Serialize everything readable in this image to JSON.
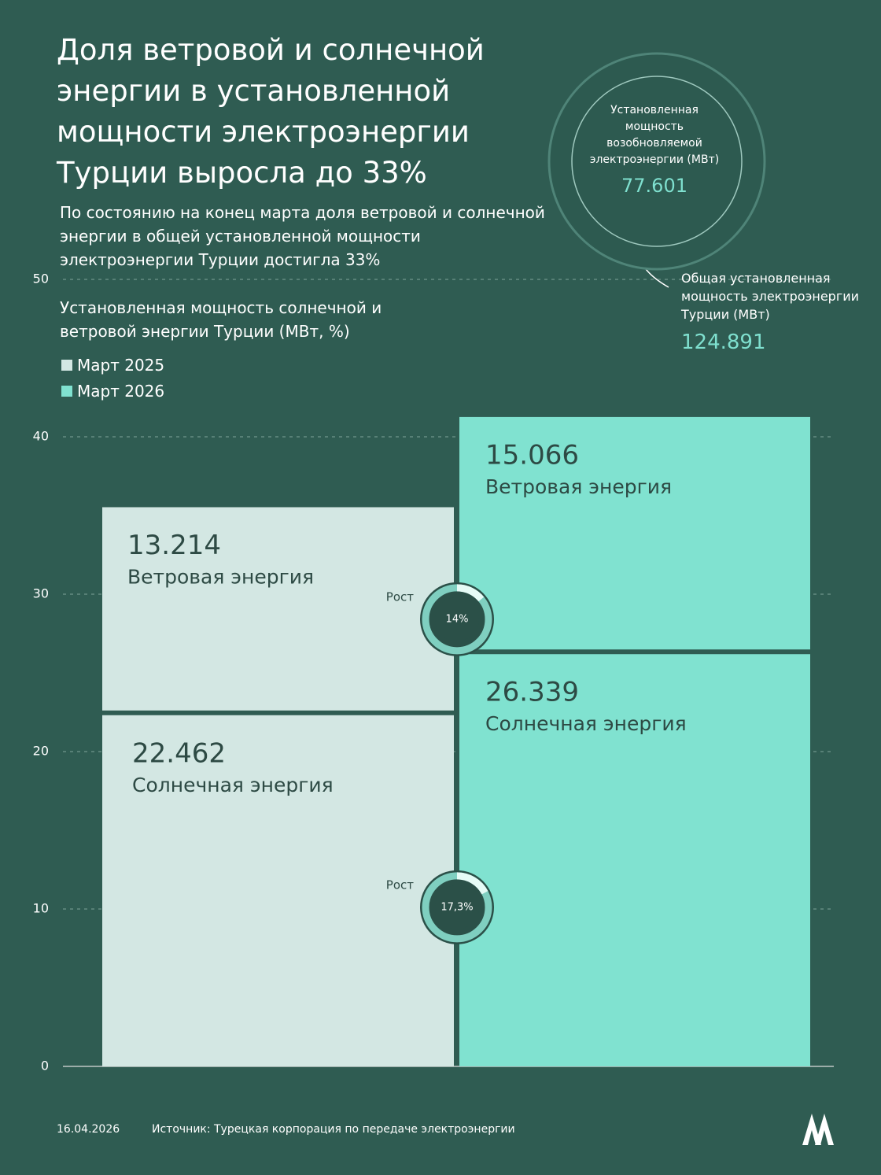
{
  "chart_data": {
    "type": "stacked_bar",
    "title": "Доля ветровой и солнечной энергии в установленной мощности электроэнергии Турции выросла до 33%",
    "subtitle": "По состоянию на конец марта доля ветровой и солнечной энергии в общей установленной мощности электроэнергии Турции достигла 33%",
    "axis_label": "Установленная мощность солнечной и ветровой энергии Турции (МВт, %)",
    "categories": [
      "Март 2025",
      "Март 2026"
    ],
    "colors": [
      "#d3e7e3",
      "#80e2d0"
    ],
    "series": [
      {
        "name": "Солнечная энергия",
        "values": [
          22.462,
          26.339
        ]
      },
      {
        "name": "Ветровая энергия",
        "values": [
          13.214,
          15.066
        ]
      }
    ],
    "growth": {
      "label": "Рост",
      "values": [
        17.3,
        14
      ],
      "value_labels": [
        "17,3%",
        "14%"
      ]
    },
    "ylim": [
      0,
      50
    ],
    "yticks": [
      0,
      10,
      20,
      30,
      40,
      50
    ],
    "totals": [
      {
        "label": "Установленная мощность возобновляемой электроэнергии (МВт)",
        "value": 77.601
      },
      {
        "label": "Общая установленная мощность электроэнергии Турции (МВт)",
        "value": 124.891
      }
    ],
    "date": "16.04.2026",
    "source": "Источник: Турецкая корпорация по передаче электроэнергии"
  }
}
